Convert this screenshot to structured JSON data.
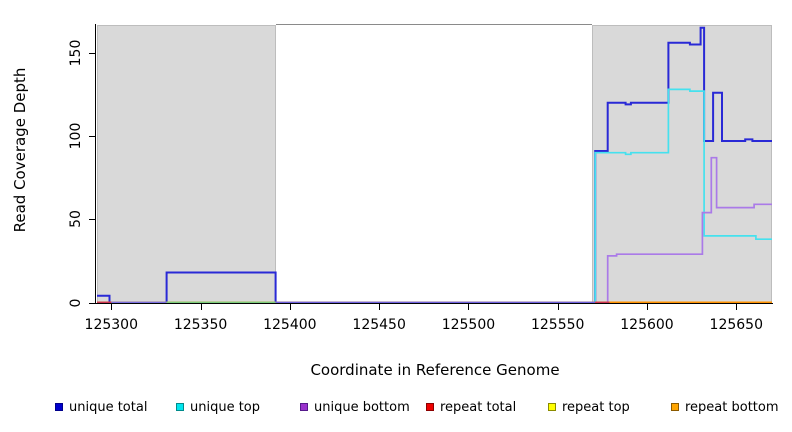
{
  "chart_data": {
    "type": "line",
    "subtype": "step-coverage-plot",
    "xlabel": "Coordinate in Reference Genome",
    "ylabel": "Read Coverage Depth",
    "xlim": [
      125292,
      125670
    ],
    "ylim": [
      0,
      167
    ],
    "xticks": [
      125300,
      125350,
      125400,
      125450,
      125500,
      125550,
      125600,
      125650
    ],
    "yticks": [
      0,
      50,
      100,
      150
    ],
    "grid": false,
    "legend_position": "bottom",
    "shaded_regions": [
      {
        "x0": 125292,
        "x1": 125392,
        "color": "#d9d9d9"
      },
      {
        "x0": 125569,
        "x1": 125670,
        "color": "#d9d9d9"
      }
    ],
    "series": [
      {
        "name": "unique total",
        "color": "#2929d6",
        "legend_fill": "#0000cd",
        "legend_border": "#00008b",
        "points": [
          [
            125292,
            4
          ],
          [
            125299,
            0
          ],
          [
            125331,
            18
          ],
          [
            125392,
            0
          ],
          [
            125571,
            91
          ],
          [
            125578,
            120
          ],
          [
            125588,
            119
          ],
          [
            125591,
            120
          ],
          [
            125612,
            156
          ],
          [
            125624,
            155
          ],
          [
            125630,
            165
          ],
          [
            125632,
            97
          ],
          [
            125637,
            126
          ],
          [
            125642,
            97
          ],
          [
            125655,
            98
          ],
          [
            125659,
            97
          ],
          [
            125670,
            97
          ]
        ]
      },
      {
        "name": "unique top",
        "color": "#45e1ee",
        "legend_fill": "#00e5ee",
        "legend_border": "#008b8b",
        "points": [
          [
            125292,
            0
          ],
          [
            125571,
            90
          ],
          [
            125588,
            89
          ],
          [
            125591,
            90
          ],
          [
            125612,
            128
          ],
          [
            125624,
            127
          ],
          [
            125632,
            40
          ],
          [
            125661,
            38
          ],
          [
            125670,
            38
          ]
        ]
      },
      {
        "name": "unique bottom",
        "color": "#aa7ae8",
        "legend_fill": "#9a32cd",
        "legend_border": "#551a8b",
        "points": [
          [
            125292,
            0
          ],
          [
            125578,
            28
          ],
          [
            125583,
            29
          ],
          [
            125631,
            54
          ],
          [
            125636,
            87
          ],
          [
            125639,
            57
          ],
          [
            125660,
            59
          ],
          [
            125670,
            59
          ]
        ]
      },
      {
        "name": "repeat total",
        "color": "#cc3350",
        "legend_fill": "#ee0000",
        "legend_border": "#8b0000",
        "points": [
          [
            125292,
            0
          ],
          [
            125670,
            0
          ]
        ]
      },
      {
        "name": "repeat top",
        "color": "#eded00",
        "legend_fill": "#ffff00",
        "legend_border": "#8b8b00",
        "points": [
          [
            125292,
            0
          ],
          [
            125670,
            0
          ]
        ]
      },
      {
        "name": "repeat bottom",
        "color": "#ff9100",
        "legend_fill": "#ffa500",
        "legend_border": "#8b5a00",
        "points": [
          [
            125292,
            0
          ],
          [
            125670,
            0
          ]
        ]
      }
    ],
    "baseline_segments": [
      {
        "x0": 125292,
        "x1": 125300,
        "color": "#cc3350"
      },
      {
        "x0": 125300,
        "x1": 125331,
        "color": "#7a70e0"
      },
      {
        "x0": 125331,
        "x1": 125392,
        "color": "#7ccd7c"
      },
      {
        "x0": 125392,
        "x1": 125571,
        "color": "#6f62de"
      },
      {
        "x0": 125571,
        "x1": 125579,
        "color": "#cc3350"
      },
      {
        "x0": 125579,
        "x1": 125670,
        "color": "#ff9100"
      }
    ]
  }
}
